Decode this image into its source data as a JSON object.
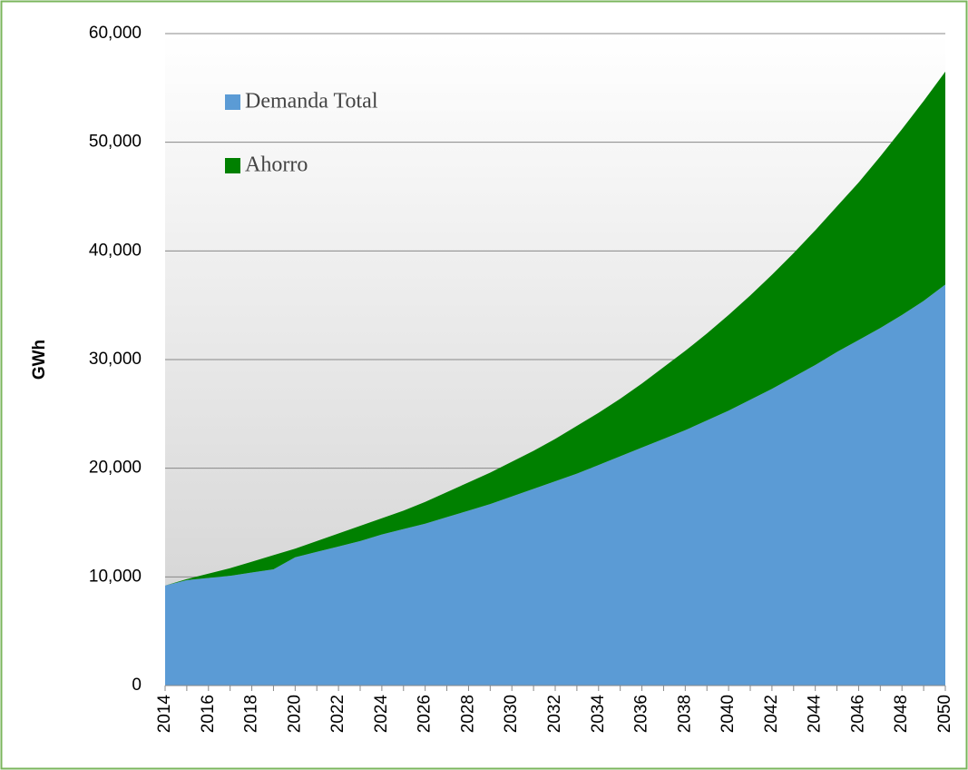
{
  "chart_data": {
    "type": "stacked-area",
    "y_label": "GWh",
    "x": [
      2014,
      2015,
      2016,
      2017,
      2018,
      2019,
      2020,
      2021,
      2022,
      2023,
      2024,
      2025,
      2026,
      2027,
      2028,
      2029,
      2030,
      2031,
      2032,
      2033,
      2034,
      2035,
      2036,
      2037,
      2038,
      2039,
      2040,
      2041,
      2042,
      2043,
      2044,
      2045,
      2046,
      2047,
      2048,
      2049,
      2050
    ],
    "series": [
      {
        "name": "Demanda Total",
        "color": "#5b9bd5",
        "values": [
          9200,
          9700,
          9900,
          10100,
          10400,
          10700,
          11800,
          12300,
          12800,
          13300,
          13900,
          14400,
          14900,
          15500,
          16100,
          16700,
          17400,
          18100,
          18800,
          19500,
          20300,
          21100,
          21900,
          22700,
          23500,
          24400,
          25300,
          26300,
          27300,
          28400,
          29500,
          30700,
          31800,
          32900,
          34100,
          35400,
          36900
        ]
      },
      {
        "name": "Ahorro",
        "color": "#008000",
        "values": [
          0,
          100,
          400,
          700,
          1000,
          1300,
          800,
          1000,
          1200,
          1400,
          1500,
          1700,
          2000,
          2300,
          2600,
          2900,
          3200,
          3500,
          3900,
          4400,
          4800,
          5300,
          5900,
          6600,
          7300,
          8000,
          8800,
          9600,
          10500,
          11400,
          12400,
          13400,
          14500,
          15800,
          17100,
          18400,
          19600
        ]
      }
    ],
    "xlim": [
      2014,
      2050
    ],
    "xticks": [
      2014,
      2016,
      2018,
      2020,
      2022,
      2024,
      2026,
      2028,
      2030,
      2032,
      2034,
      2036,
      2038,
      2040,
      2042,
      2044,
      2046,
      2048,
      2050
    ],
    "ylim": [
      0,
      60000
    ],
    "yticks": [
      0,
      {
        "value": 10000,
        "label": "10,000"
      },
      {
        "value": 20000,
        "label": "20,000"
      },
      {
        "value": 30000,
        "label": "30,000"
      },
      {
        "value": 40000,
        "label": "40,000"
      },
      {
        "value": 50000,
        "label": "50,000"
      },
      {
        "value": 60000,
        "label": "60,000"
      }
    ],
    "grid": true,
    "legend": "upper-left"
  }
}
